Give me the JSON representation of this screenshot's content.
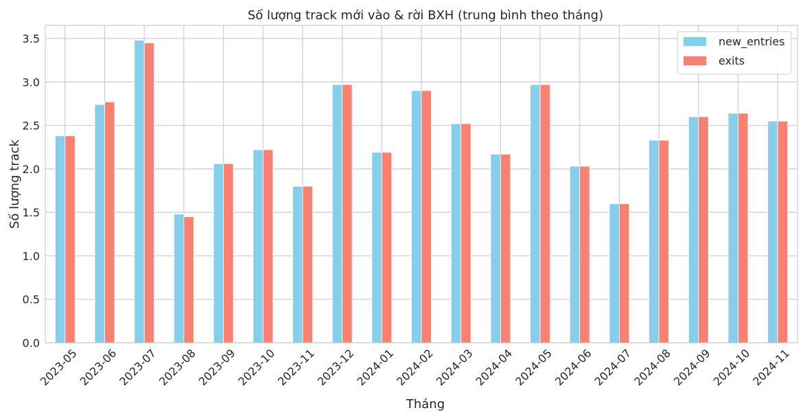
{
  "chart_data": {
    "type": "bar",
    "title": "Số lượng track mới vào & rời BXH (trung bình theo tháng)",
    "xlabel": "Tháng",
    "ylabel": "Số lượng track",
    "ylim": [
      0,
      3.65
    ],
    "yticks": [
      "0.0",
      "0.5",
      "1.0",
      "1.5",
      "2.0",
      "2.5",
      "3.0",
      "3.5"
    ],
    "grid": true,
    "legend_position": "top-right",
    "categories": [
      "2023-05",
      "2023-06",
      "2023-07",
      "2023-08",
      "2023-09",
      "2023-10",
      "2023-11",
      "2023-12",
      "2024-01",
      "2024-02",
      "2024-03",
      "2024-04",
      "2024-05",
      "2024-06",
      "2024-07",
      "2024-08",
      "2024-09",
      "2024-10",
      "2024-11"
    ],
    "series": [
      {
        "name": "new_entries",
        "color": "#87ceeb",
        "values": [
          2.38,
          2.74,
          3.48,
          1.48,
          2.06,
          2.22,
          1.8,
          2.97,
          2.19,
          2.9,
          2.52,
          2.17,
          2.97,
          2.03,
          1.6,
          2.33,
          2.6,
          2.64,
          2.55
        ]
      },
      {
        "name": "exits",
        "color": "#fa8072",
        "values": [
          2.38,
          2.77,
          3.45,
          1.45,
          2.06,
          2.22,
          1.8,
          2.97,
          2.19,
          2.9,
          2.52,
          2.17,
          2.97,
          2.03,
          1.6,
          2.33,
          2.6,
          2.64,
          2.55
        ]
      }
    ]
  }
}
